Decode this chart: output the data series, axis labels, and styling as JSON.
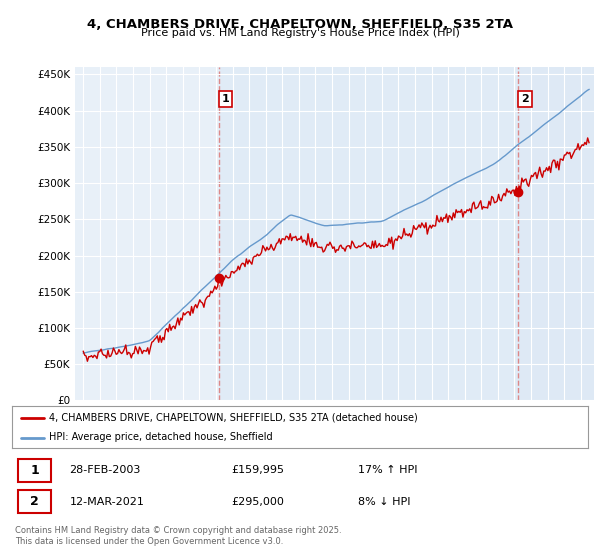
{
  "title_line1": "4, CHAMBERS DRIVE, CHAPELTOWN, SHEFFIELD, S35 2TA",
  "title_line2": "Price paid vs. HM Land Registry's House Price Index (HPI)",
  "legend_label_red": "4, CHAMBERS DRIVE, CHAPELTOWN, SHEFFIELD, S35 2TA (detached house)",
  "legend_label_blue": "HPI: Average price, detached house, Sheffield",
  "sale1_date": "28-FEB-2003",
  "sale1_price": "£159,995",
  "sale1_hpi": "17% ↑ HPI",
  "sale1_year": 2003.16,
  "sale1_value": 159995,
  "sale2_date": "12-MAR-2021",
  "sale2_price": "£295,000",
  "sale2_hpi": "8% ↓ HPI",
  "sale2_year": 2021.21,
  "sale2_value": 295000,
  "color_red": "#cc0000",
  "color_blue": "#6699cc",
  "color_dashed": "#dd8888",
  "color_highlight": "#dce8f5",
  "background_color": "#e8f0f8",
  "grid_color": "#ffffff",
  "ylim_min": 0,
  "ylim_max": 460000,
  "yticks": [
    0,
    50000,
    100000,
    150000,
    200000,
    250000,
    300000,
    350000,
    400000,
    450000
  ],
  "footnote": "Contains HM Land Registry data © Crown copyright and database right 2025.\nThis data is licensed under the Open Government Licence v3.0."
}
